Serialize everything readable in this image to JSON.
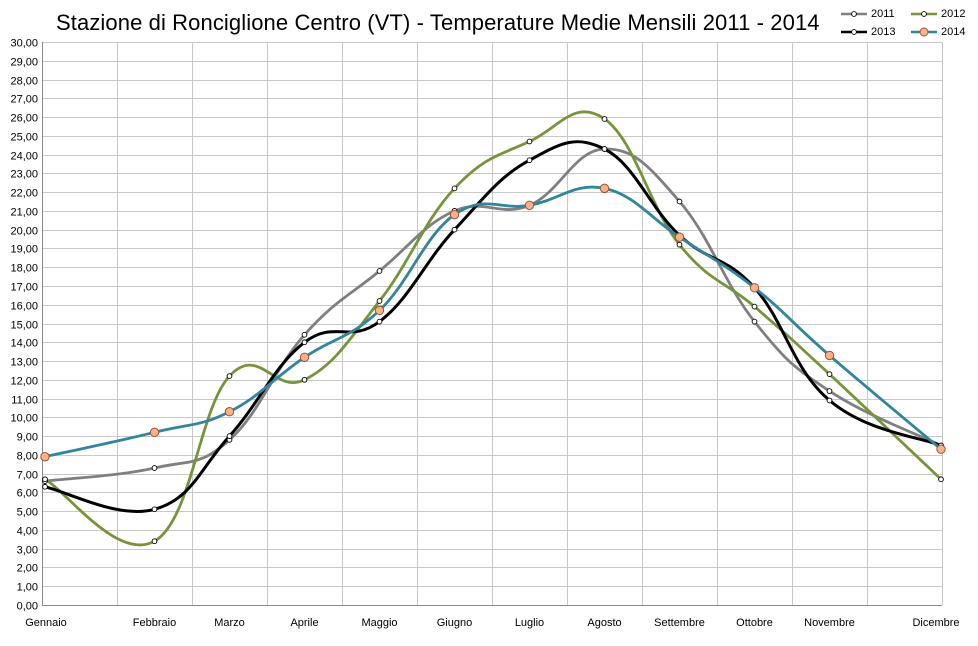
{
  "chart_data": {
    "type": "line",
    "title": "Stazione di Ronciglione Centro (VT) - Temperature  Medie Mensili 2011 - 2014",
    "categories": [
      "Gennaio",
      "Febbraio",
      "Marzo",
      "Aprile",
      "Maggio",
      "Giugno",
      "Luglio",
      "Agosto",
      "Settembre",
      "Ottobre",
      "Novembre",
      "Dicembre"
    ],
    "ylim": [
      0,
      30
    ],
    "ytick_step": 1,
    "y_tick_format": "2-decimals-comma",
    "grid": true,
    "legend_position": "top-right",
    "series": [
      {
        "name": "2011",
        "color": "#7f7f7f",
        "marker": "small-white-circle",
        "values": [
          6.6,
          7.3,
          8.8,
          14.4,
          17.8,
          21.0,
          21.3,
          24.3,
          21.5,
          15.1,
          11.4,
          8.5
        ]
      },
      {
        "name": "2012",
        "color": "#77933c",
        "marker": "small-white-circle",
        "values": [
          6.7,
          3.4,
          12.2,
          12.0,
          16.2,
          22.2,
          24.7,
          25.9,
          19.2,
          15.9,
          12.3,
          6.7
        ]
      },
      {
        "name": "2013",
        "color": "#000000",
        "marker": "small-white-circle",
        "values": [
          6.3,
          5.1,
          9.0,
          14.0,
          15.1,
          20.0,
          23.7,
          24.3,
          19.7,
          16.9,
          10.9,
          8.5
        ]
      },
      {
        "name": "2014",
        "color": "#31859c",
        "marker": "orange-circle",
        "values": [
          7.9,
          9.2,
          10.3,
          13.2,
          15.7,
          20.8,
          21.3,
          22.2,
          19.6,
          16.9,
          13.3,
          8.3
        ]
      }
    ]
  }
}
